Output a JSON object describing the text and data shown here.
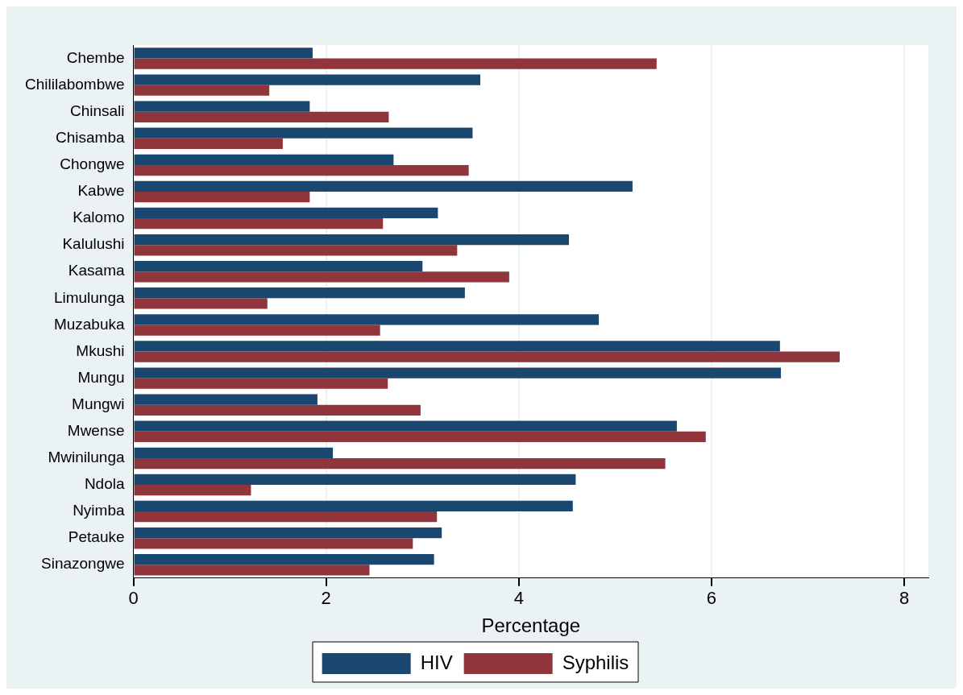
{
  "chart_data": {
    "type": "bar",
    "orientation": "horizontal",
    "xlabel": "Percentage",
    "categories": [
      "Chembe",
      "Chililabombwe",
      "Chinsali",
      "Chisamba",
      "Chongwe",
      "Kabwe",
      "Kalomo",
      "Kalulushi",
      "Kasama",
      "Limulunga",
      "Muzabuka",
      "Mkushi",
      "Mungu",
      "Mungwi",
      "Mwense",
      "Mwinilunga",
      "Ndola",
      "Nyimba",
      "Petauke",
      "Sinazongwe"
    ],
    "series": [
      {
        "name": "HIV",
        "color": "#1a476f",
        "values": [
          1.86,
          3.6,
          1.83,
          3.52,
          2.7,
          5.18,
          3.16,
          4.52,
          3.0,
          3.44,
          4.83,
          6.71,
          6.72,
          1.91,
          5.64,
          2.07,
          4.59,
          4.56,
          3.2,
          3.12
        ]
      },
      {
        "name": "Syphilis",
        "color": "#90353b",
        "values": [
          5.43,
          1.41,
          2.65,
          1.55,
          3.48,
          1.83,
          2.59,
          3.36,
          3.9,
          1.39,
          2.56,
          7.33,
          2.64,
          2.98,
          5.94,
          5.52,
          1.22,
          3.15,
          2.9,
          2.45
        ]
      }
    ],
    "xlim": [
      0,
      8.25
    ],
    "xticks": [
      0,
      2,
      4,
      6,
      8
    ],
    "grid": "x",
    "legend": "bottom"
  }
}
